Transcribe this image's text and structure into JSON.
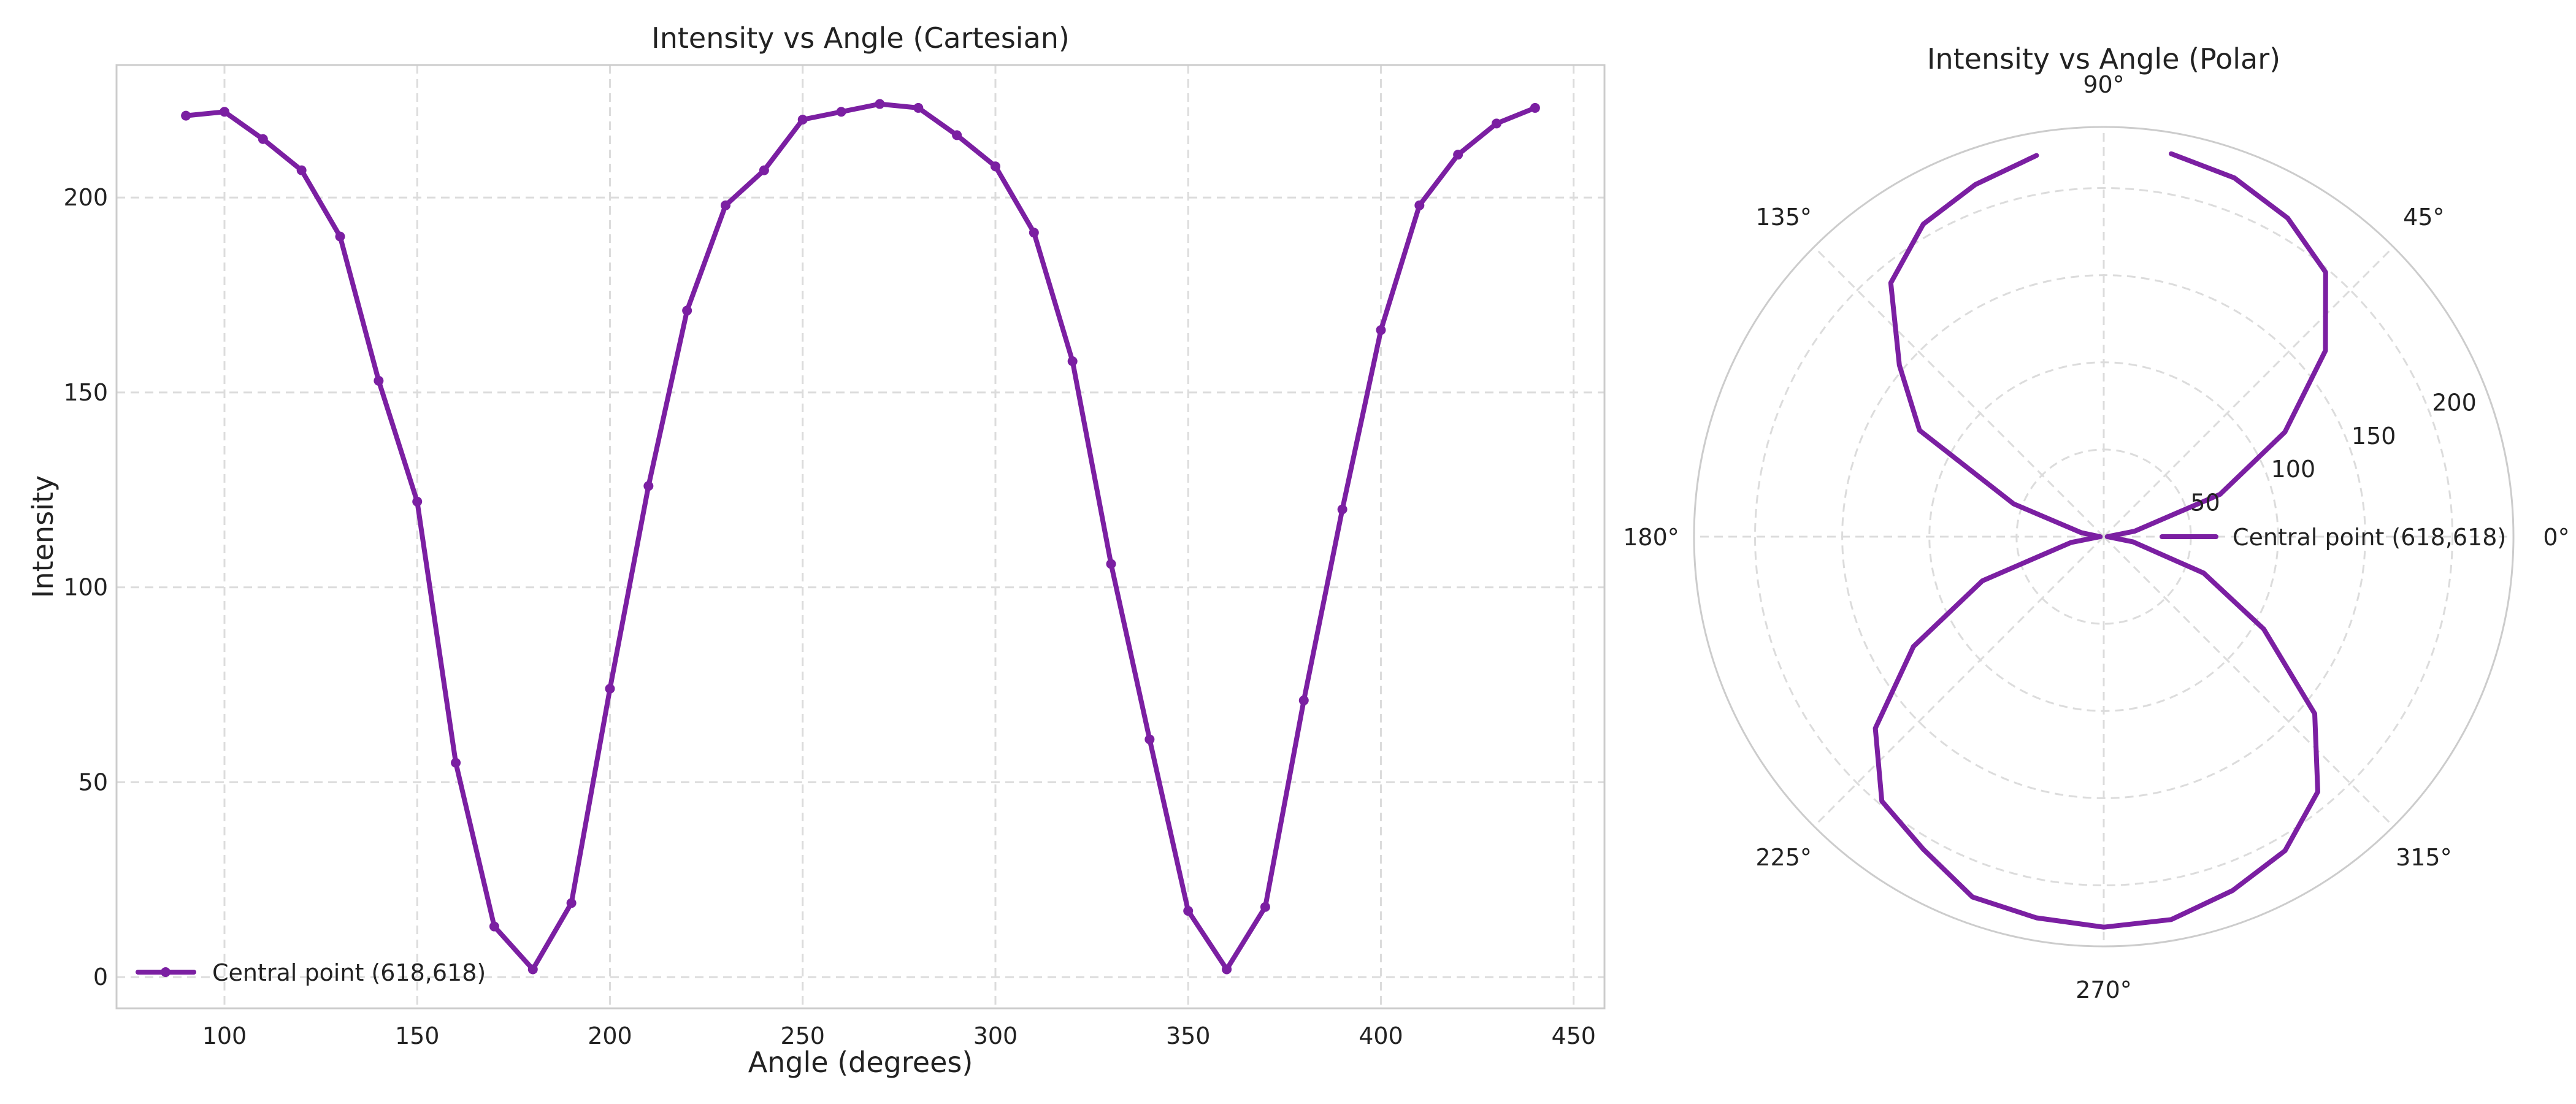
{
  "chart_data": [
    {
      "type": "line",
      "title": "Intensity vs Angle (Cartesian)",
      "xlabel": "Angle (degrees)",
      "ylabel": "Intensity",
      "xlim": [
        72,
        458
      ],
      "ylim": [
        -8,
        234
      ],
      "x_ticks": [
        "100",
        "150",
        "200",
        "250",
        "300",
        "350",
        "400",
        "450"
      ],
      "y_ticks": [
        "0",
        "50",
        "100",
        "150",
        "200"
      ],
      "grid": true,
      "legend": "lower-left",
      "series": [
        {
          "name": "Central point (618,618)",
          "color": "#7b1fa2",
          "x": [
            90,
            100,
            110,
            120,
            130,
            140,
            150,
            160,
            170,
            180,
            190,
            200,
            210,
            220,
            230,
            240,
            250,
            260,
            270,
            280,
            290,
            300,
            310,
            320,
            330,
            340,
            350,
            360,
            370,
            380,
            390,
            400,
            410,
            420,
            430,
            440
          ],
          "y": [
            221,
            222,
            215,
            207,
            190,
            153,
            122,
            55,
            13,
            2,
            19,
            74,
            126,
            171,
            198,
            207,
            220,
            222,
            224,
            223,
            216,
            208,
            191,
            158,
            106,
            61,
            17,
            2,
            18,
            71,
            120,
            166,
            198,
            211,
            219,
            223
          ]
        }
      ]
    },
    {
      "type": "polar-line",
      "title": "Intensity vs Angle (Polar)",
      "angle_ticks": [
        "0°",
        "45°",
        "90°",
        "135°",
        "180°",
        "225°",
        "270°",
        "315°"
      ],
      "radial_ticks": [
        "50",
        "100",
        "150",
        "200"
      ],
      "rmax": 235,
      "grid": true,
      "legend": "right",
      "series": [
        {
          "name": "Central point (618,618)",
          "color": "#7b1fa2",
          "theta_deg": [
            100,
            110,
            120,
            130,
            140,
            150,
            160,
            170,
            180,
            190,
            200,
            210,
            220,
            230,
            240,
            250,
            260,
            270,
            280,
            290,
            300,
            310,
            320,
            330,
            340,
            350,
            360,
            370,
            380,
            390,
            400,
            410,
            420,
            430,
            440
          ],
          "r": [
            222,
            215,
            207,
            190,
            153,
            122,
            55,
            13,
            2,
            19,
            74,
            126,
            171,
            198,
            207,
            220,
            222,
            224,
            223,
            216,
            208,
            191,
            158,
            106,
            61,
            17,
            2,
            18,
            71,
            120,
            166,
            198,
            211,
            219,
            223
          ]
        }
      ]
    }
  ]
}
